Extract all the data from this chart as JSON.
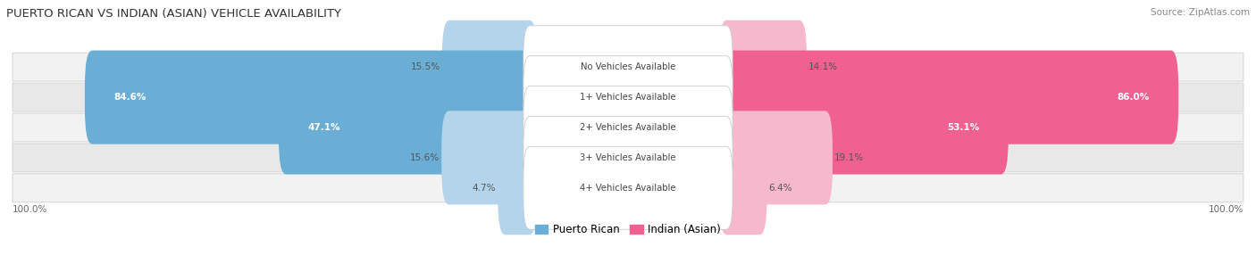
{
  "title": "PUERTO RICAN VS INDIAN (ASIAN) VEHICLE AVAILABILITY",
  "source": "Source: ZipAtlas.com",
  "categories": [
    "No Vehicles Available",
    "1+ Vehicles Available",
    "2+ Vehicles Available",
    "3+ Vehicles Available",
    "4+ Vehicles Available"
  ],
  "puerto_rican": [
    15.5,
    84.6,
    47.1,
    15.6,
    4.7
  ],
  "indian_asian": [
    14.1,
    86.0,
    53.1,
    19.1,
    6.4
  ],
  "pr_color_dark": "#6aaed6",
  "pr_color_light": "#b3d4ea",
  "ia_color_dark": "#f06090",
  "ia_color_light": "#f5b8cc",
  "row_bg_light": "#f2f2f2",
  "row_bg_dark": "#e8e8e8",
  "label_bg_color": "#ffffff",
  "figsize": [
    14.06,
    2.86
  ],
  "dpi": 100,
  "threshold_dark": 30
}
